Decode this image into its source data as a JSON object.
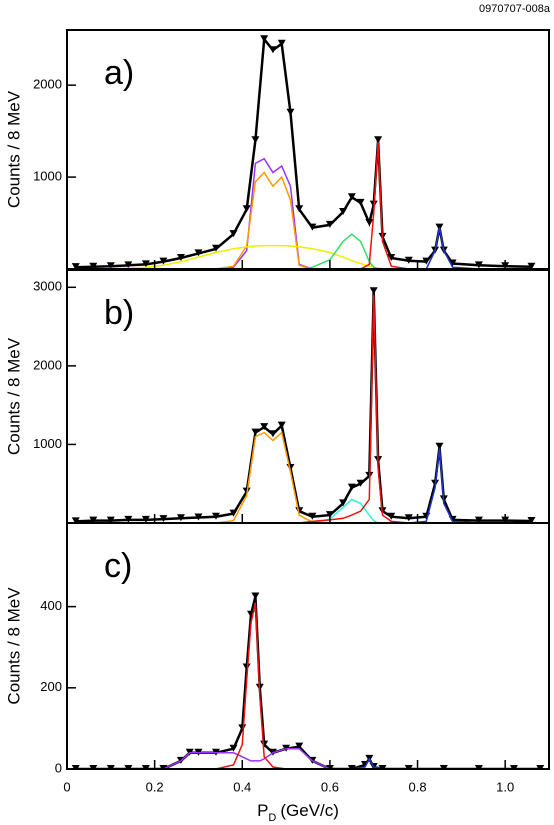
{
  "figure_code": "0970707-008a",
  "chart_data": [
    {
      "type": "line",
      "label": "a)",
      "y_label": "Counts / 8 MeV",
      "x": [
        0.02,
        0.06,
        0.1,
        0.14,
        0.18,
        0.22,
        0.26,
        0.3,
        0.34,
        0.38,
        0.41,
        0.43,
        0.45,
        0.47,
        0.49,
        0.51,
        0.53,
        0.56,
        0.6,
        0.63,
        0.65,
        0.67,
        0.69,
        0.7,
        0.71,
        0.72,
        0.74,
        0.78,
        0.82,
        0.84,
        0.85,
        0.86,
        0.88,
        0.94,
        1.0,
        1.06
      ],
      "xlim": [
        0,
        1.1
      ],
      "ylim": [
        0,
        2600
      ],
      "yticks": [
        1000,
        2000
      ],
      "series": [
        {
          "color": "#000000",
          "markers": true,
          "values": [
            20,
            25,
            30,
            40,
            50,
            80,
            120,
            170,
            220,
            380,
            650,
            1400,
            2500,
            2380,
            2450,
            1700,
            650,
            450,
            480,
            620,
            780,
            720,
            500,
            700,
            1400,
            350,
            120,
            90,
            80,
            200,
            450,
            200,
            60,
            40,
            30,
            25
          ]
        },
        {
          "color": "#9933ff",
          "values": [
            0,
            0,
            0,
            0,
            0,
            0,
            0,
            0,
            0,
            20,
            200,
            1150,
            1200,
            1050,
            1120,
            900,
            50,
            0,
            0,
            0,
            0,
            0,
            0,
            0,
            0,
            0,
            0,
            0,
            0,
            0,
            0,
            0,
            0,
            0,
            0,
            0
          ]
        },
        {
          "color": "#ff9900",
          "values": [
            0,
            0,
            0,
            0,
            0,
            0,
            0,
            0,
            0,
            30,
            250,
            950,
            1050,
            900,
            1000,
            750,
            40,
            0,
            0,
            0,
            0,
            0,
            0,
            0,
            0,
            0,
            0,
            0,
            0,
            0,
            0,
            0,
            0,
            0,
            0,
            0
          ]
        },
        {
          "color": "#eeee00",
          "values": [
            0,
            0,
            5,
            10,
            20,
            40,
            80,
            130,
            180,
            220,
            240,
            250,
            255,
            255,
            255,
            250,
            240,
            220,
            180,
            130,
            90,
            60,
            30,
            20,
            10,
            5,
            0,
            0,
            0,
            0,
            0,
            0,
            0,
            0,
            0,
            0
          ]
        },
        {
          "color": "#33dd66",
          "values": [
            0,
            0,
            0,
            0,
            0,
            0,
            0,
            0,
            0,
            0,
            0,
            0,
            0,
            0,
            0,
            0,
            0,
            20,
            100,
            300,
            380,
            300,
            80,
            20,
            0,
            0,
            0,
            0,
            0,
            0,
            0,
            0,
            0,
            0,
            0,
            0
          ]
        },
        {
          "color": "#ee1111",
          "values": [
            0,
            0,
            0,
            0,
            0,
            0,
            0,
            0,
            0,
            0,
            0,
            0,
            0,
            0,
            0,
            0,
            0,
            0,
            0,
            0,
            0,
            0,
            50,
            600,
            1380,
            300,
            30,
            0,
            0,
            0,
            0,
            0,
            0,
            0,
            0,
            0
          ]
        },
        {
          "color": "#2233cc",
          "values": [
            0,
            0,
            0,
            0,
            0,
            0,
            0,
            0,
            0,
            0,
            0,
            0,
            0,
            0,
            0,
            0,
            0,
            0,
            0,
            0,
            0,
            0,
            0,
            0,
            0,
            0,
            0,
            0,
            0,
            200,
            450,
            200,
            20,
            0,
            0,
            0
          ]
        }
      ]
    },
    {
      "type": "line",
      "label": "b)",
      "y_label": "Counts / 8 MeV",
      "x": [
        0.02,
        0.06,
        0.1,
        0.14,
        0.18,
        0.22,
        0.26,
        0.3,
        0.34,
        0.38,
        0.41,
        0.43,
        0.45,
        0.47,
        0.49,
        0.51,
        0.53,
        0.56,
        0.6,
        0.63,
        0.65,
        0.67,
        0.69,
        0.7,
        0.71,
        0.72,
        0.74,
        0.78,
        0.82,
        0.84,
        0.85,
        0.86,
        0.88,
        0.94,
        1.0,
        1.06
      ],
      "xlim": [
        0,
        1.1
      ],
      "ylim": [
        0,
        3220
      ],
      "yticks": [
        1000,
        2000,
        3000
      ],
      "series": [
        {
          "color": "#000000",
          "markers": true,
          "values": [
            20,
            30,
            30,
            40,
            40,
            50,
            60,
            70,
            80,
            120,
            400,
            1150,
            1220,
            1130,
            1240,
            700,
            150,
            80,
            100,
            250,
            450,
            500,
            600,
            2950,
            800,
            150,
            80,
            60,
            80,
            500,
            970,
            300,
            40,
            30,
            30,
            25
          ]
        },
        {
          "color": "#ff9900",
          "values": [
            0,
            0,
            0,
            0,
            0,
            0,
            0,
            0,
            0,
            30,
            350,
            1100,
            1150,
            1050,
            1150,
            650,
            100,
            10,
            0,
            0,
            0,
            0,
            0,
            0,
            0,
            0,
            0,
            0,
            0,
            0,
            0,
            0,
            0,
            0,
            0,
            0
          ]
        },
        {
          "color": "#33eedd",
          "values": [
            0,
            0,
            0,
            0,
            0,
            0,
            0,
            0,
            0,
            0,
            0,
            0,
            0,
            0,
            0,
            0,
            0,
            0,
            50,
            200,
            300,
            250,
            100,
            30,
            0,
            0,
            0,
            0,
            0,
            0,
            0,
            0,
            0,
            0,
            0,
            0
          ]
        },
        {
          "color": "#ee1111",
          "values": [
            0,
            0,
            0,
            0,
            0,
            0,
            0,
            0,
            0,
            0,
            0,
            0,
            0,
            0,
            0,
            0,
            0,
            20,
            40,
            60,
            100,
            150,
            300,
            2900,
            700,
            100,
            20,
            0,
            0,
            0,
            0,
            0,
            0,
            0,
            0,
            0
          ]
        },
        {
          "color": "#2233cc",
          "values": [
            0,
            0,
            0,
            0,
            0,
            0,
            0,
            0,
            0,
            0,
            0,
            0,
            0,
            0,
            0,
            0,
            0,
            0,
            0,
            0,
            0,
            0,
            0,
            0,
            0,
            0,
            0,
            0,
            20,
            450,
            950,
            250,
            20,
            0,
            0,
            0
          ]
        }
      ]
    },
    {
      "type": "line",
      "label": "c)",
      "y_label": "Counts / 8 MeV",
      "x": [
        0.02,
        0.06,
        0.1,
        0.14,
        0.18,
        0.22,
        0.26,
        0.28,
        0.3,
        0.34,
        0.38,
        0.4,
        0.41,
        0.42,
        0.43,
        0.44,
        0.45,
        0.47,
        0.5,
        0.53,
        0.56,
        0.6,
        0.65,
        0.68,
        0.69,
        0.7,
        0.72,
        0.78,
        0.86,
        0.94,
        1.02,
        1.08
      ],
      "xlim": [
        0,
        1.1
      ],
      "ylim": [
        0,
        606
      ],
      "yticks": [
        0,
        200,
        400
      ],
      "xticks": [
        0,
        0.2,
        0.4,
        0.6,
        0.8,
        {
          "value": 1,
          "label": "1.0"
        }
      ],
      "x_label": {
        "symbol": "P",
        "subscript": "D",
        "unit": "(GeV/c)"
      },
      "series": [
        {
          "color": "#000000",
          "markers": true,
          "values": [
            0,
            0,
            0,
            0,
            0,
            0,
            20,
            40,
            40,
            40,
            50,
            100,
            250,
            380,
            425,
            200,
            60,
            40,
            50,
            55,
            20,
            0,
            0,
            10,
            25,
            5,
            0,
            0,
            0,
            0,
            0,
            0
          ]
        },
        {
          "color": "#9933ff",
          "values": [
            0,
            0,
            0,
            0,
            0,
            0,
            20,
            40,
            40,
            40,
            40,
            30,
            25,
            20,
            20,
            20,
            25,
            40,
            50,
            50,
            20,
            0,
            0,
            0,
            0,
            0,
            0,
            0,
            0,
            0,
            0,
            0
          ]
        },
        {
          "color": "#ee1111",
          "values": [
            0,
            0,
            0,
            0,
            0,
            0,
            0,
            0,
            0,
            0,
            10,
            60,
            220,
            360,
            410,
            180,
            30,
            5,
            0,
            0,
            0,
            0,
            0,
            0,
            0,
            0,
            0,
            0,
            0,
            0,
            0,
            0
          ]
        },
        {
          "color": "#2233cc",
          "values": [
            0,
            0,
            0,
            0,
            0,
            0,
            0,
            0,
            0,
            0,
            0,
            0,
            0,
            0,
            0,
            0,
            0,
            0,
            0,
            0,
            0,
            0,
            0,
            5,
            25,
            5,
            0,
            0,
            0,
            0,
            0,
            0
          ]
        }
      ]
    }
  ]
}
